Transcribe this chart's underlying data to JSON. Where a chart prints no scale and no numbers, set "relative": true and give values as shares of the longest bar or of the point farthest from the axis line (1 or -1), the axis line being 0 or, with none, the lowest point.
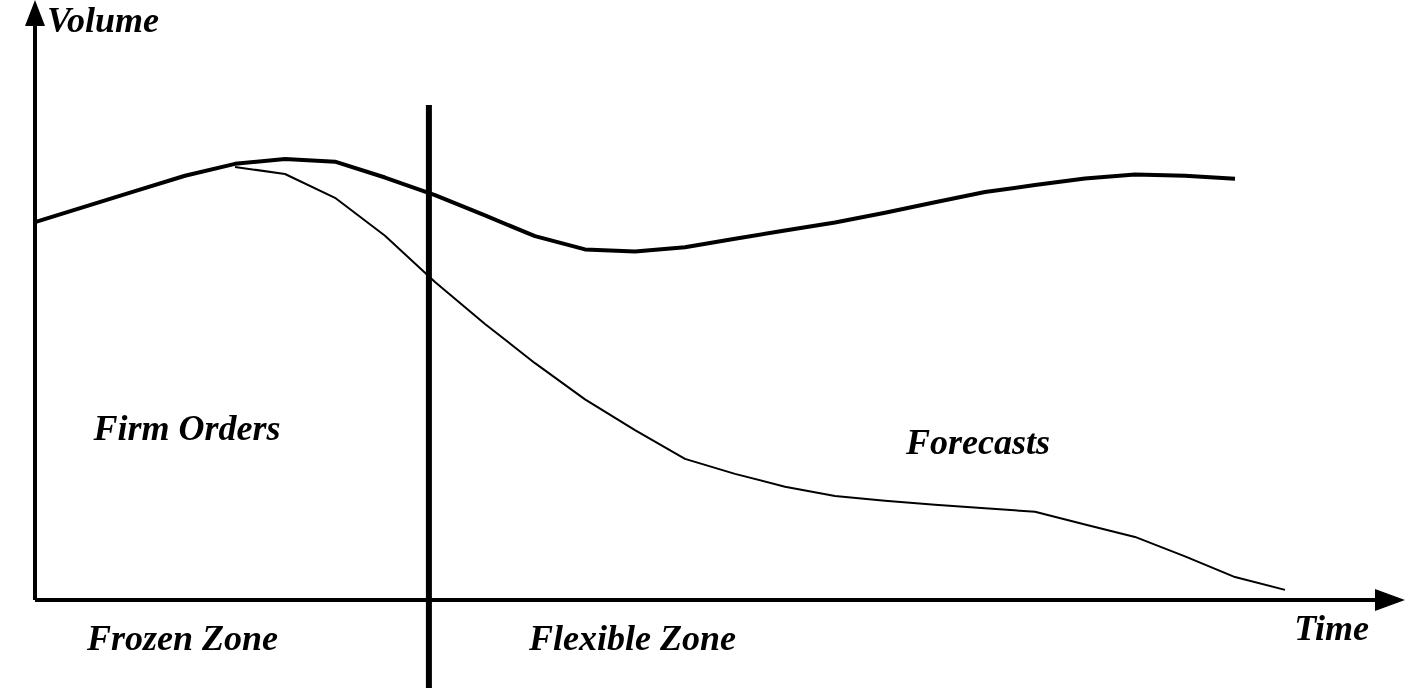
{
  "chart_data": {
    "type": "line",
    "relative": true,
    "xlabel": "Time",
    "ylabel": "Volume",
    "categories": [
      null,
      null,
      null,
      null,
      null,
      null,
      null,
      null,
      null,
      null,
      null,
      null,
      null,
      null,
      null,
      null,
      null,
      null,
      null,
      null,
      null,
      null,
      null,
      null,
      null,
      null,
      null
    ],
    "series": [
      {
        "color": "#000000",
        "values": [
          0.857,
          0.892,
          0.927,
          0.962,
          0.989,
          1.0,
          0.994,
          0.958,
          0.918,
          0.872,
          0.825,
          0.795,
          0.79,
          0.8,
          0.819,
          0.838,
          0.856,
          0.878,
          0.902,
          0.925,
          0.941,
          0.956,
          0.965,
          0.962,
          0.955,
          null,
          null
        ]
      },
      {
        "color": "#000000",
        "values": [
          null,
          null,
          null,
          null,
          0.982,
          0.966,
          0.912,
          0.826,
          0.721,
          0.626,
          0.537,
          0.455,
          0.385,
          0.32,
          0.286,
          0.257,
          0.236,
          0.225,
          0.216,
          0.208,
          0.2,
          0.171,
          0.143,
          0.099,
          0.052,
          0.023,
          null
        ]
      }
    ],
    "annotations": [
      "Firm Orders",
      "Forecasts",
      "Frozen Zone",
      "Flexible Zone"
    ],
    "grid": false,
    "marker": "none",
    "line_style": "solid"
  }
}
